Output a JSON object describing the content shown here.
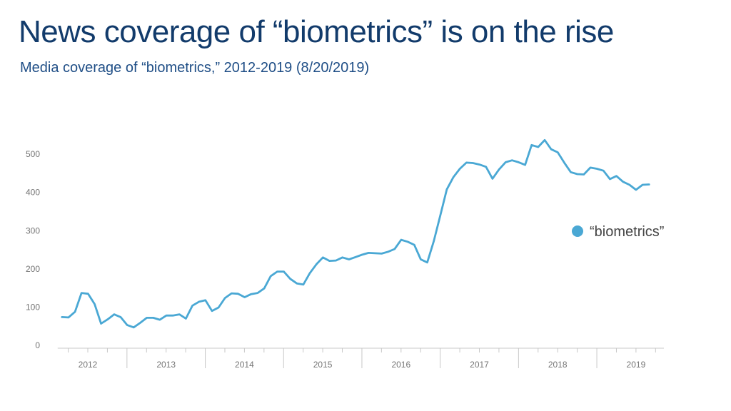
{
  "header": {
    "title": "News coverage of “biometrics” is on the rise",
    "subtitle": "Media coverage of “biometrics,” 2012-2019 (8/20/2019)"
  },
  "colors": {
    "series": "#4aa8d4",
    "axis": "#c8c8c8",
    "title": "#123b6b"
  },
  "chart_data": {
    "type": "line",
    "title": "News coverage of “biometrics” is on the rise",
    "subtitle": "Media coverage of “biometrics,” 2012-2019 (8/20/2019)",
    "xlabel": "",
    "ylabel": "",
    "ylim": [
      0,
      560
    ],
    "yticks": [
      0,
      100,
      200,
      300,
      400,
      500
    ],
    "x_tick_labels": [
      "2012",
      "2013",
      "2014",
      "2015",
      "2016",
      "2017",
      "2018",
      "2019"
    ],
    "x_start_year": 2011.67,
    "x_step_years": 0.0833,
    "grid": false,
    "legend_position": "right",
    "series": [
      {
        "name": "“biometrics”",
        "color": "#4aa8d4",
        "values": [
          74,
          73,
          88,
          137,
          135,
          108,
          57,
          68,
          81,
          74,
          53,
          47,
          59,
          72,
          72,
          67,
          78,
          78,
          81,
          70,
          104,
          114,
          118,
          90,
          99,
          124,
          136,
          135,
          126,
          134,
          137,
          149,
          181,
          193,
          193,
          174,
          162,
          159,
          189,
          212,
          230,
          221,
          222,
          230,
          225,
          231,
          237,
          242,
          241,
          240,
          245,
          252,
          276,
          271,
          263,
          225,
          217,
          273,
          340,
          408,
          440,
          462,
          478,
          477,
          473,
          467,
          436,
          460,
          479,
          484,
          479,
          472,
          524,
          519,
          537,
          513,
          505,
          478,
          453,
          448,
          447,
          465,
          462,
          457,
          435,
          443,
          428,
          420,
          407,
          420,
          421
        ]
      }
    ]
  }
}
